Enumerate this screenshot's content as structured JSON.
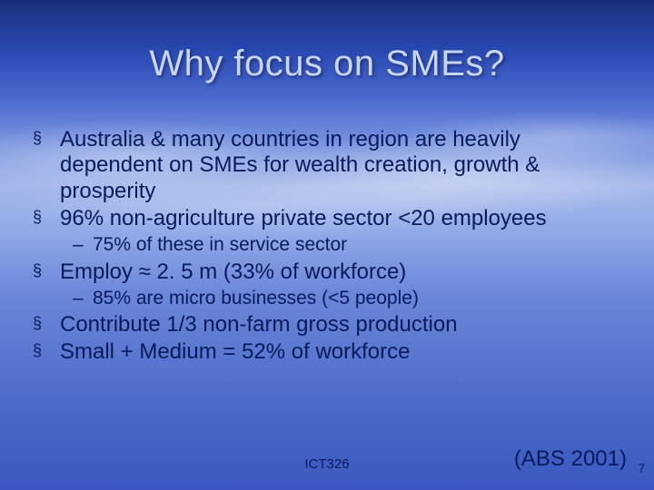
{
  "title": "Why focus on SMEs?",
  "bullets": [
    {
      "level": 1,
      "text": "Australia & many countries in region are heavily dependent on SMEs for wealth creation, growth & prosperity"
    },
    {
      "level": 1,
      "text": "96% non-agriculture private sector <20 employees"
    },
    {
      "level": 2,
      "text": "75% of these in service sector"
    },
    {
      "level": 1,
      "text": "Employ ≈ 2. 5 m (33% of workforce)"
    },
    {
      "level": 2,
      "text": "85% are micro businesses (<5 people)"
    },
    {
      "level": 1,
      "text": "Contribute 1/3 non-farm gross production"
    },
    {
      "level": 1,
      "text": "Small + Medium = 52% of workforce"
    }
  ],
  "footer": {
    "center": "ICT326",
    "right": "(ABS 2001)",
    "page": "7"
  },
  "style": {
    "title_color": "#c9d6f5",
    "text_color": "#0a1a5a",
    "title_fontsize": 40,
    "l1_fontsize": 24,
    "l2_fontsize": 21,
    "bullet_glyph": "§",
    "dash_glyph": "–",
    "slide_width": 720,
    "slide_height": 540,
    "background_gradient": [
      "#1a2e7a",
      "#2848b0",
      "#4a6ad0",
      "#7a95e0",
      "#a5b8ea",
      "#8fa8e8",
      "#6b87d8",
      "#5a78d0",
      "#4868c8",
      "#3a58c0"
    ]
  }
}
